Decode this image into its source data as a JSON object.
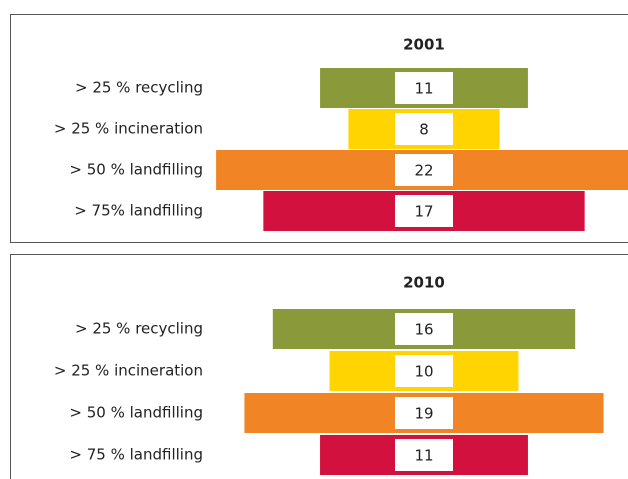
{
  "chart_data": [
    {
      "type": "funnel",
      "title": "2001",
      "categories": [
        "> 25 % recycling",
        "> 25 % incineration",
        "> 50 % landfilling",
        "> 75% landfilling"
      ],
      "values": [
        11,
        8,
        22,
        17
      ],
      "colors": [
        "#8a9a3b",
        "#ffd400",
        "#f18424",
        "#d2113f"
      ]
    },
    {
      "type": "funnel",
      "title": "2010",
      "categories": [
        "> 25 % recycling",
        "> 25 % incineration",
        "> 50 % landfilling",
        "> 75 % landfilling"
      ],
      "values": [
        16,
        10,
        19,
        11
      ],
      "colors": [
        "#8a9a3b",
        "#ffd400",
        "#f18424",
        "#d2113f"
      ]
    }
  ]
}
